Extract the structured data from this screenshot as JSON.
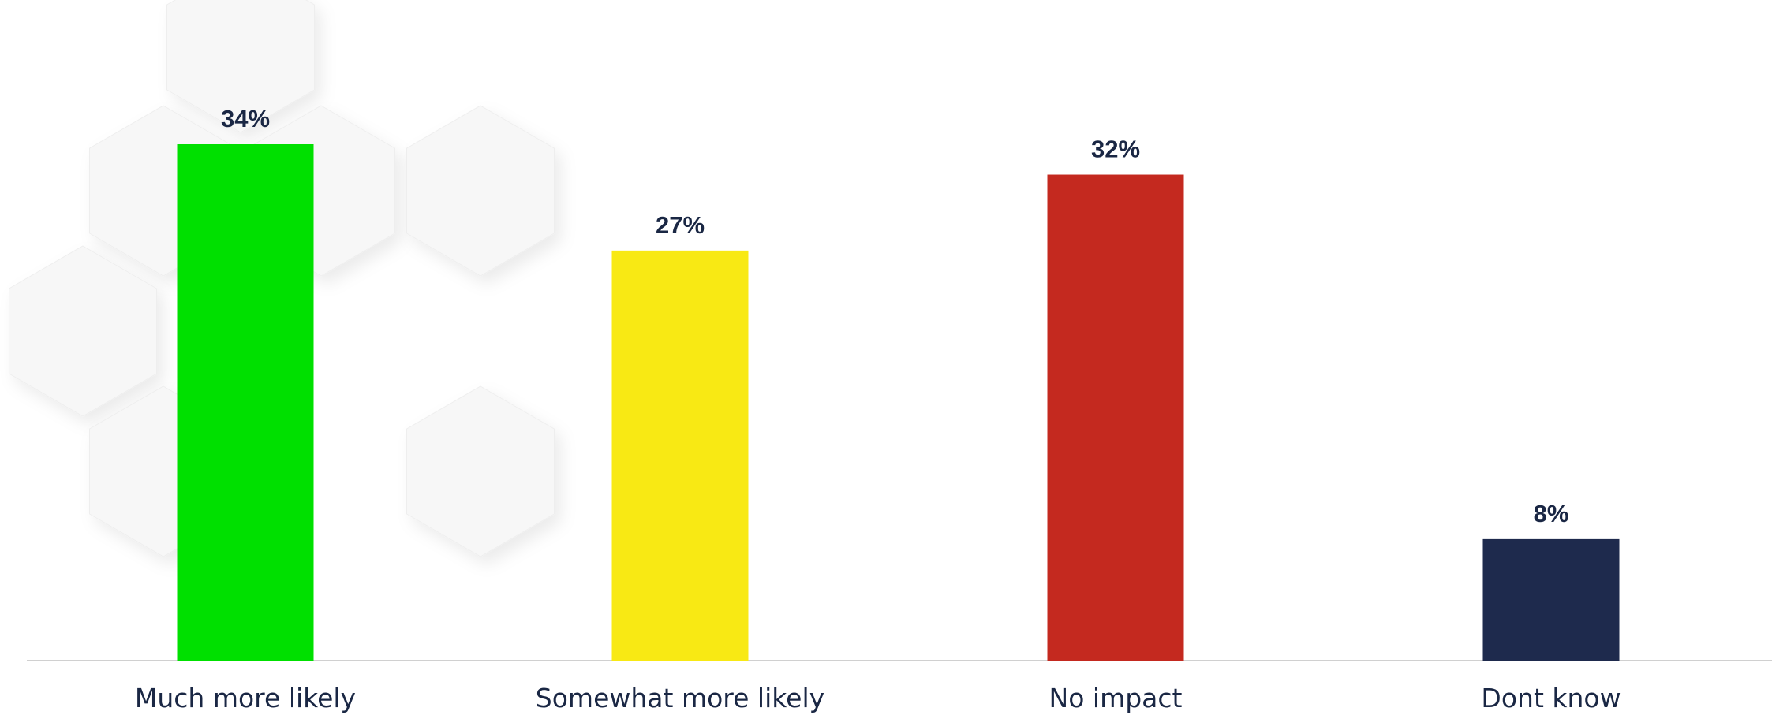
{
  "title_fragment": "",
  "chart_data": {
    "type": "bar",
    "categories": [
      "Much more likely",
      "Somewhat more likely",
      "No impact",
      "Dont know"
    ],
    "values": [
      34,
      27,
      32,
      8
    ],
    "value_labels": [
      "34%",
      "27%",
      "32%",
      "8%"
    ],
    "colors": [
      "#00e000",
      "#f8e914",
      "#c4291f",
      "#1e2a4d"
    ],
    "title": "",
    "xlabel": "",
    "ylabel": "",
    "ylim": [
      0,
      40
    ],
    "grid": false,
    "legend": "none"
  }
}
